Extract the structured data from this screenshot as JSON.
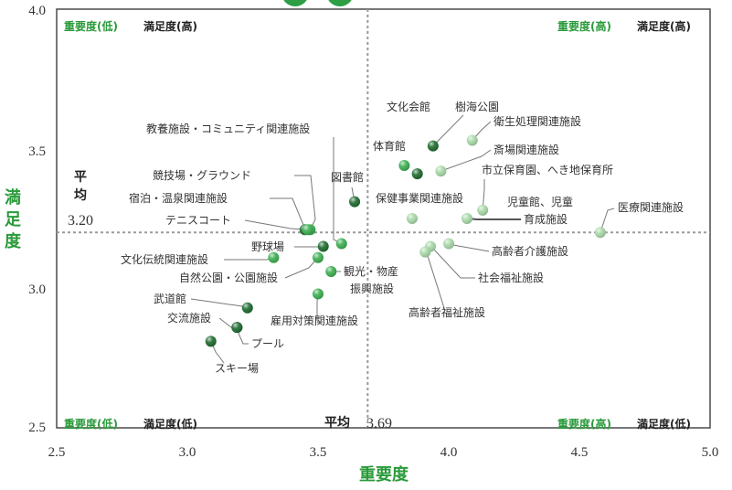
{
  "chart_data": {
    "type": "scatter",
    "xlabel": "重要度",
    "ylabel": "満足度",
    "xlim": [
      2.5,
      5.0
    ],
    "ylim": [
      2.5,
      4.0
    ],
    "x_ticks": [
      "2.5",
      "3.0",
      "3.5",
      "4.0",
      "4.5",
      "5.0"
    ],
    "y_ticks": [
      "2.5",
      "3.0",
      "3.5",
      "4.0"
    ],
    "average": {
      "label": "平均",
      "x": 3.69,
      "x_text": "3.69",
      "y": 3.2,
      "y_text": "3.20"
    },
    "quadrants": {
      "top_left": {
        "importance": "重要度(低)",
        "satisfaction": "満足度(高)"
      },
      "top_right": {
        "importance": "重要度(高)",
        "satisfaction": "満足度(高)"
      },
      "bottom_left": {
        "importance": "重要度(低)",
        "satisfaction": "満足度(低)"
      },
      "bottom_right": {
        "importance": "重要度(高)",
        "satisfaction": "満足度(低)"
      }
    },
    "points": [
      {
        "name": "文化会館",
        "x": 3.88,
        "y": 3.41,
        "color": "#1e6b30"
      },
      {
        "name": "樹海公園",
        "x": 3.94,
        "y": 3.51,
        "color": "#1e6b30"
      },
      {
        "name": "衛生処理関連施設",
        "x": 4.09,
        "y": 3.53,
        "color": "#a8d8a8"
      },
      {
        "name": "体育館",
        "x": 3.83,
        "y": 3.44,
        "color": "#3cae50"
      },
      {
        "name": "斎場関連施設",
        "x": 3.97,
        "y": 3.42,
        "color": "#a8d8a8"
      },
      {
        "name": "市立保育園、へき地保育所",
        "x": 4.13,
        "y": 3.28,
        "color": "#a8d8a8"
      },
      {
        "name": "図書館",
        "x": 3.64,
        "y": 3.31,
        "color": "#1e6b30"
      },
      {
        "name": "保健事業関連施設",
        "x": 3.86,
        "y": 3.25,
        "color": "#a8d8a8"
      },
      {
        "name": "児童館、児童育成施設",
        "x": 4.07,
        "y": 3.25,
        "color": "#a8d8a8"
      },
      {
        "name": "医療関連施設",
        "x": 4.58,
        "y": 3.2,
        "color": "#a8d8a8"
      },
      {
        "name": "教養施設・コミュニティ関連施設",
        "x": 3.59,
        "y": 3.16,
        "color": "#3cae50"
      },
      {
        "name": "競技場・グラウンド",
        "x": 3.47,
        "y": 3.21,
        "color": "#3cae50"
      },
      {
        "name": "宿泊・温泉関連施設",
        "x": 3.45,
        "y": 3.21,
        "color": "#1e6b30"
      },
      {
        "name": "テニスコート",
        "x": 3.46,
        "y": 3.21,
        "color": "#3cae50"
      },
      {
        "name": "野球場",
        "x": 3.52,
        "y": 3.15,
        "color": "#1e6b30"
      },
      {
        "name": "文化伝統関連施設",
        "x": 3.33,
        "y": 3.11,
        "color": "#3cae50"
      },
      {
        "name": "自然公園・公園施設",
        "x": 3.5,
        "y": 3.11,
        "color": "#3cae50"
      },
      {
        "name": "観光・物産振興施設",
        "x": 3.55,
        "y": 3.06,
        "color": "#3cae50"
      },
      {
        "name": "武道館",
        "x": 3.23,
        "y": 2.93,
        "color": "#1e6b30"
      },
      {
        "name": "交流施設",
        "x": 3.19,
        "y": 2.86,
        "color": "#1e6b30"
      },
      {
        "name": "雇用対策関連施設",
        "x": 3.5,
        "y": 2.98,
        "color": "#3cae50"
      },
      {
        "name": "高齢者介護施設",
        "x": 4.0,
        "y": 3.16,
        "color": "#a8d8a8"
      },
      {
        "name": "社会福祉施設",
        "x": 3.93,
        "y": 3.15,
        "color": "#a8d8a8"
      },
      {
        "name": "高齢者福祉施設",
        "x": 3.91,
        "y": 3.13,
        "color": "#a8d8a8"
      },
      {
        "name": "プール",
        "x": 3.19,
        "y": 2.86,
        "color": "#1e6b30"
      },
      {
        "name": "スキー場",
        "x": 3.09,
        "y": 2.81,
        "color": "#1e6b30"
      }
    ]
  }
}
